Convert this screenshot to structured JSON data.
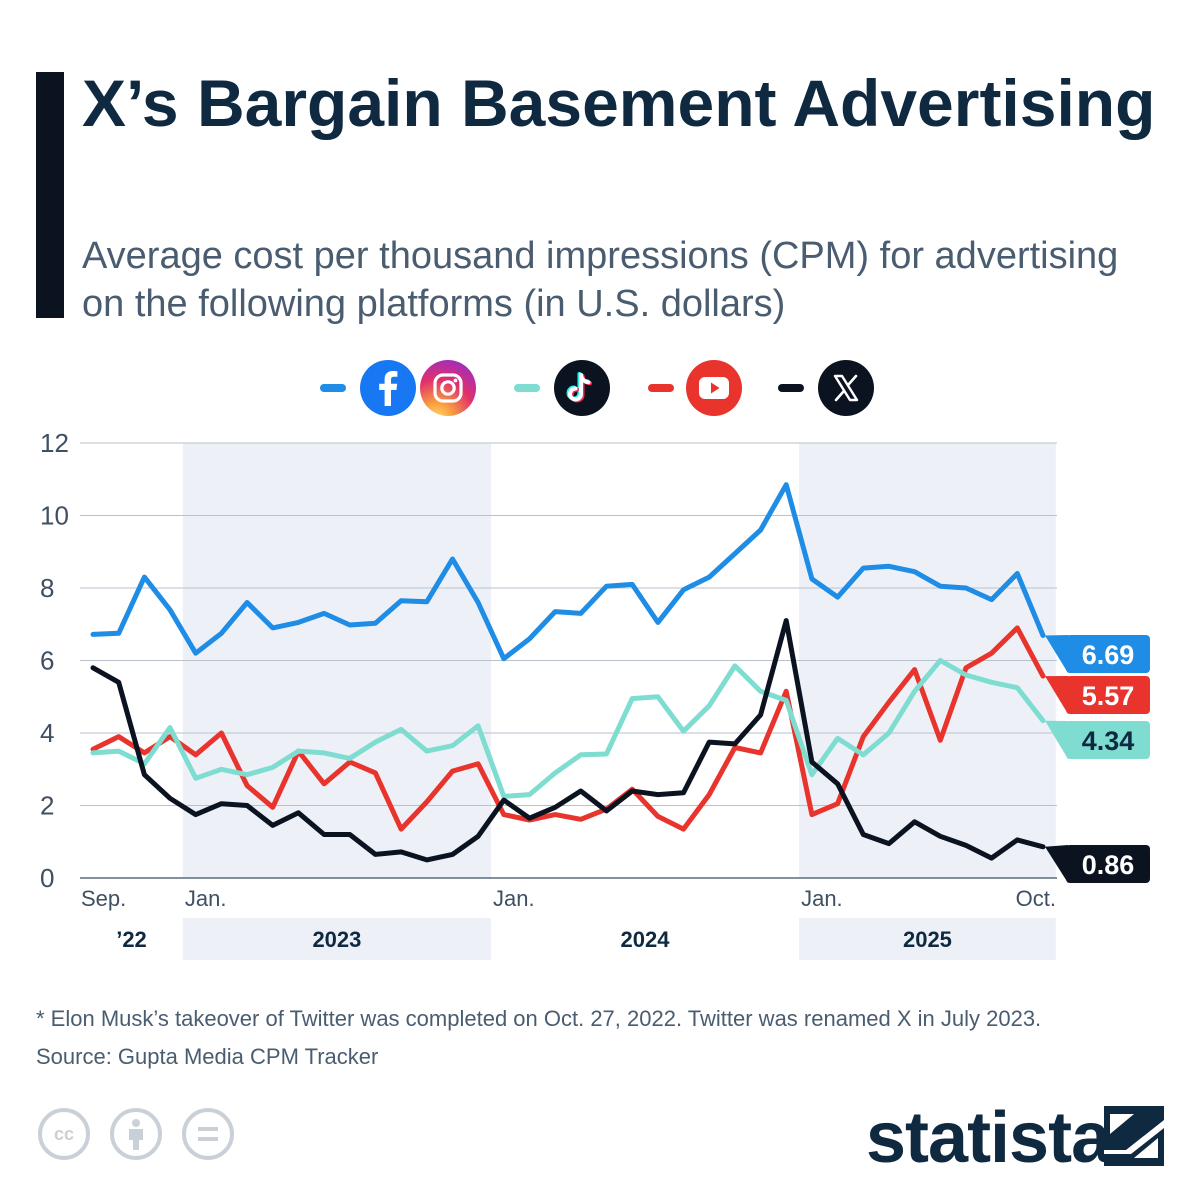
{
  "title": "X’s Bargain Basement Advertising",
  "subtitle": "Average cost per thousand impressions (CPM) for advertising on the following platforms (in U.S. dollars)",
  "legend": [
    {
      "name": "Facebook/Instagram",
      "color": "#1f8ce6",
      "icons": [
        "facebook-icon",
        "instagram-icon"
      ]
    },
    {
      "name": "TikTok",
      "color": "#7fdcd1",
      "icons": [
        "tiktok-icon"
      ]
    },
    {
      "name": "YouTube",
      "color": "#e8342c",
      "icons": [
        "youtube-icon"
      ]
    },
    {
      "name": "X",
      "color": "#0c1320",
      "icons": [
        "x-icon"
      ]
    }
  ],
  "footnote": "* Elon Musk’s takeover of Twitter was completed on Oct. 27, 2022. Twitter was renamed X in July 2023.",
  "source": "Source: Gupta Media CPM Tracker",
  "brand": "statista",
  "license_icons": [
    "creative-commons-icon",
    "attribution-icon",
    "no-derivatives-icon"
  ],
  "chart_data": {
    "type": "line",
    "title": "X’s Bargain Basement Advertising",
    "xlabel": "",
    "ylabel": "",
    "ylim": [
      0,
      12
    ],
    "yticks": [
      0,
      2,
      4,
      6,
      8,
      10,
      12
    ],
    "grid": true,
    "x_range": [
      "Sep. 2022",
      "Oct. 2025"
    ],
    "x_points": 38,
    "month_labels": [
      {
        "index": 0,
        "label": "Sep."
      },
      {
        "index": 4,
        "label": "Jan."
      },
      {
        "index": 16,
        "label": "Jan."
      },
      {
        "index": 28,
        "label": "Jan."
      },
      {
        "index": 37,
        "label": "Oct."
      }
    ],
    "year_bands": [
      {
        "start": -0.5,
        "end": 3.5,
        "label": "’22",
        "shaded": false
      },
      {
        "start": 3.5,
        "end": 15.5,
        "label": "2023",
        "shaded": true
      },
      {
        "start": 15.5,
        "end": 27.5,
        "label": "2024",
        "shaded": false
      },
      {
        "start": 27.5,
        "end": 37.5,
        "label": "2025",
        "shaded": true
      }
    ],
    "series": [
      {
        "name": "Facebook/Instagram",
        "color": "#1f8ce6",
        "end_label": "6.69",
        "values": [
          6.72,
          6.75,
          8.3,
          7.4,
          6.2,
          6.75,
          7.6,
          6.9,
          7.05,
          7.3,
          6.98,
          7.03,
          7.65,
          7.62,
          8.8,
          7.6,
          6.05,
          6.6,
          7.35,
          7.3,
          8.05,
          8.1,
          7.05,
          7.95,
          8.3,
          8.95,
          9.6,
          10.85,
          8.25,
          7.75,
          8.55,
          8.6,
          8.45,
          8.05,
          8.0,
          7.68,
          8.4,
          6.69
        ]
      },
      {
        "name": "YouTube",
        "color": "#e8342c",
        "end_label": "5.57",
        "values": [
          3.55,
          3.9,
          3.45,
          3.9,
          3.4,
          4.0,
          2.55,
          1.95,
          3.5,
          2.6,
          3.2,
          2.9,
          1.35,
          2.1,
          2.95,
          3.15,
          1.75,
          1.6,
          1.75,
          1.62,
          1.9,
          2.45,
          1.7,
          1.35,
          2.3,
          3.6,
          3.45,
          5.15,
          1.75,
          2.05,
          3.9,
          4.85,
          5.75,
          3.8,
          5.8,
          6.2,
          6.9,
          5.57
        ]
      },
      {
        "name": "TikTok",
        "color": "#7fdcd1",
        "end_label": "4.34",
        "values": [
          3.45,
          3.5,
          3.15,
          4.15,
          2.75,
          3.0,
          2.85,
          3.05,
          3.5,
          3.45,
          3.3,
          3.75,
          4.1,
          3.5,
          3.65,
          4.2,
          2.25,
          2.3,
          2.9,
          3.4,
          3.42,
          4.95,
          5.0,
          4.05,
          4.75,
          5.85,
          5.15,
          4.9,
          2.85,
          3.85,
          3.4,
          4.0,
          5.15,
          6.0,
          5.6,
          5.4,
          5.25,
          4.34
        ]
      },
      {
        "name": "X",
        "color": "#0c1320",
        "end_label": "0.86",
        "values": [
          5.8,
          5.4,
          2.85,
          2.2,
          1.75,
          2.05,
          2.0,
          1.45,
          1.8,
          1.2,
          1.2,
          0.65,
          0.72,
          0.5,
          0.65,
          1.15,
          2.15,
          1.65,
          1.95,
          2.4,
          1.85,
          2.4,
          2.3,
          2.35,
          3.75,
          3.7,
          4.5,
          7.1,
          3.2,
          2.6,
          1.2,
          0.95,
          1.55,
          1.15,
          0.9,
          0.55,
          1.05,
          0.86
        ]
      }
    ]
  }
}
